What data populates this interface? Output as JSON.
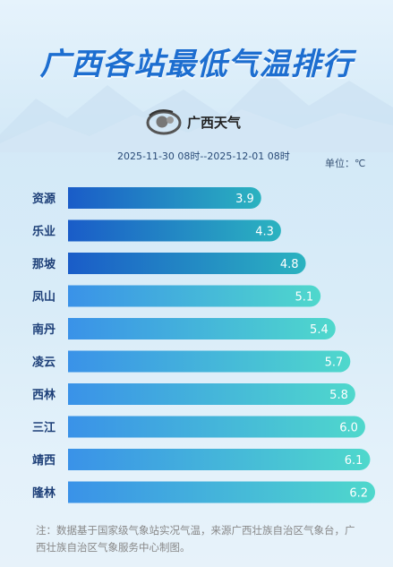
{
  "header": {
    "title": "广西各站最低气温排行",
    "logo_text": "广西天气",
    "time_range": "2025-11-30 08时--2025-12-01 08时",
    "unit": "单位：℃"
  },
  "chart_data": {
    "type": "bar",
    "orientation": "horizontal",
    "categories": [
      "资源",
      "乐业",
      "那坡",
      "凤山",
      "南丹",
      "凌云",
      "西林",
      "三江",
      "靖西",
      "隆林"
    ],
    "values": [
      3.9,
      4.3,
      4.8,
      5.1,
      5.4,
      5.7,
      5.8,
      6.0,
      6.1,
      6.2
    ],
    "value_labels": [
      "3.9",
      "4.3",
      "4.8",
      "5.1",
      "5.4",
      "5.7",
      "5.8",
      "6.0",
      "6.1",
      "6.2"
    ],
    "title": "广西各站最低气温排行",
    "unit": "℃",
    "xlim": [
      0,
      6.2
    ],
    "grid": false,
    "legend": "none",
    "colors": {
      "top_bar_start": "#1a5cc8",
      "top_bar_end": "#2bb3c0",
      "bar_start": "#3a92e8",
      "bar_end": "#4fd8cc",
      "category_label": "#1d3f78",
      "value_label": "#ffffff"
    }
  },
  "footnote": "注：数据基于国家级气象站实况气温，来源广西壮族自治区气象台，广西壮族自治区气象服务中心制图。"
}
